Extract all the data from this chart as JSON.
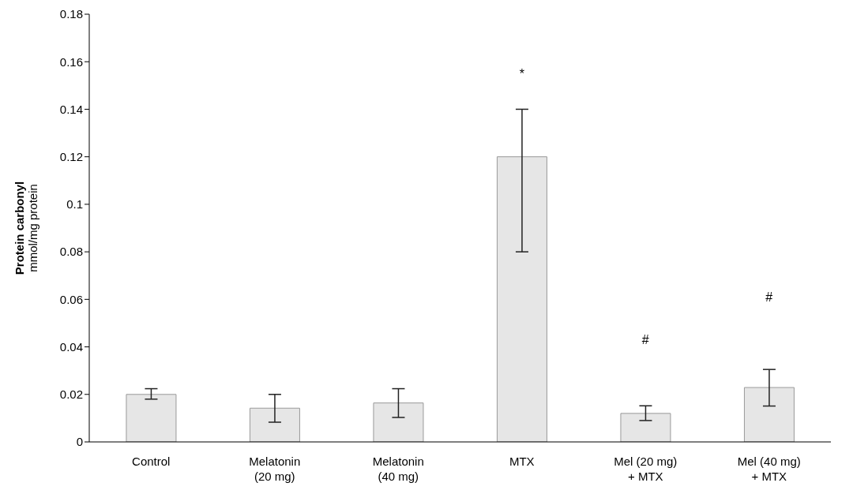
{
  "chart_data": {
    "type": "bar",
    "ylabel": "Protein carbonyl\nmmol/mg protein",
    "categories": [
      "Control",
      "Melatonin\n(20 mg)",
      "Melatonin\n(40 mg)",
      "MTX",
      "Mel (20 mg)\n+ MTX",
      "Mel (40 mg)\n+ MTX"
    ],
    "values": [
      0.02,
      0.0142,
      0.0164,
      0.12,
      0.012,
      0.0229
    ],
    "errors": [
      [
        0.018,
        0.0224
      ],
      [
        0.0083,
        0.02
      ],
      [
        0.0103,
        0.0224
      ],
      [
        0.08,
        0.14
      ],
      [
        0.009,
        0.0152
      ],
      [
        0.0151,
        0.0305
      ]
    ],
    "color": "#e6e6e6",
    "ylim": [
      0,
      0.18
    ],
    "yticks": [
      0,
      0.02,
      0.04,
      0.06,
      0.08,
      0.1,
      0.12,
      0.14,
      0.16,
      0.18
    ],
    "grid": false,
    "annotations": [
      "*",
      "#",
      "#"
    ]
  }
}
